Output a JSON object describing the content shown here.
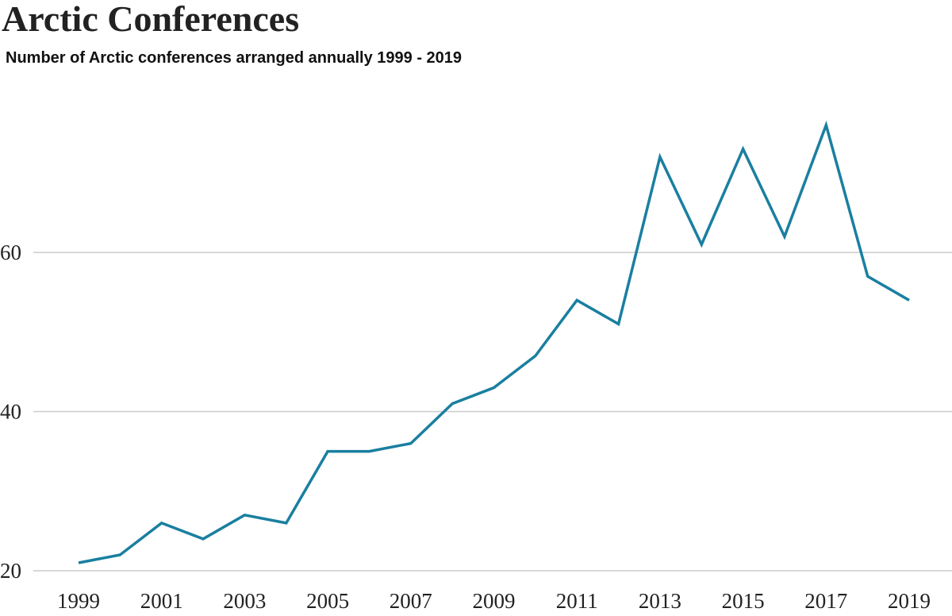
{
  "chart_data": {
    "type": "line",
    "title": "Arctic Conferences",
    "subtitle": "Number of Arctic conferences arranged annually 1999 - 2019",
    "xlabel": "",
    "ylabel": "",
    "x": [
      1999,
      2000,
      2001,
      2002,
      2003,
      2004,
      2005,
      2006,
      2007,
      2008,
      2009,
      2010,
      2011,
      2012,
      2013,
      2014,
      2015,
      2016,
      2017,
      2018,
      2019
    ],
    "series": [
      {
        "values": [
          21,
          22,
          26,
          24,
          27,
          26,
          35,
          35,
          36,
          41,
          43,
          47,
          54,
          51,
          72,
          61,
          73,
          62,
          76,
          57,
          54
        ]
      }
    ],
    "xticks": [
      "1999",
      "2001",
      "2003",
      "2005",
      "2007",
      "2009",
      "2011",
      "2013",
      "2015",
      "2017",
      "2019"
    ],
    "yticks": [
      "20",
      "40",
      "60"
    ],
    "ylim": [
      20,
      80
    ],
    "grid": "horizontal",
    "legend": "none",
    "colors": {
      "line": "#1a7fa0",
      "grid": "#cccccc",
      "text": "#222222"
    }
  }
}
